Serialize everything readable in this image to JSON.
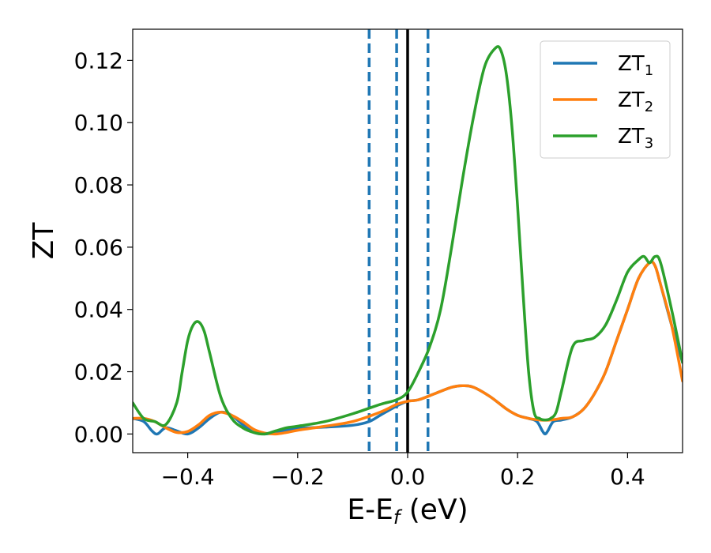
{
  "chart_data": {
    "type": "line",
    "title": "",
    "xlabel": "E-E",
    "xlabel_sub": "f",
    "xlabel_unit": " (eV)",
    "ylabel": "ZT",
    "xlim": [
      -0.5,
      0.5
    ],
    "ylim": [
      -0.006,
      0.13
    ],
    "xticks": [
      -0.4,
      -0.2,
      0.0,
      0.2,
      0.4
    ],
    "xtick_labels": [
      "−0.4",
      "−0.2",
      "0.0",
      "0.2",
      "0.4"
    ],
    "yticks": [
      0.0,
      0.02,
      0.04,
      0.06,
      0.08,
      0.1,
      0.12
    ],
    "ytick_labels": [
      "0.00",
      "0.02",
      "0.04",
      "0.06",
      "0.08",
      "0.10",
      "0.12"
    ],
    "legend_position": "top-right",
    "vlines": [
      {
        "x": -0.07,
        "style": "dashed",
        "color": "#1f77b4"
      },
      {
        "x": -0.02,
        "style": "dashed",
        "color": "#1f77b4"
      },
      {
        "x": 0.037,
        "style": "dashed",
        "color": "#1f77b4"
      },
      {
        "x": 0.0,
        "style": "solid",
        "color": "#000000"
      }
    ],
    "series": [
      {
        "name": "ZT",
        "sub": "1",
        "color": "#1f77b4",
        "x": [
          -0.5,
          -0.48,
          -0.465,
          -0.455,
          -0.44,
          -0.42,
          -0.4,
          -0.38,
          -0.36,
          -0.34,
          -0.32,
          -0.3,
          -0.28,
          -0.26,
          -0.24,
          -0.22,
          -0.2,
          -0.15,
          -0.1,
          -0.07,
          -0.05,
          -0.02,
          0.0,
          0.02,
          0.05,
          0.08,
          0.1,
          0.12,
          0.15,
          0.18,
          0.2,
          0.22,
          0.235,
          0.245,
          0.25,
          0.255,
          0.265,
          0.28,
          0.3,
          0.32,
          0.34,
          0.36,
          0.38,
          0.4,
          0.42,
          0.44,
          0.45,
          0.46,
          0.48,
          0.5
        ],
        "y": [
          0.005,
          0.004,
          0.001,
          0.0,
          0.002,
          0.001,
          0.0,
          0.002,
          0.005,
          0.007,
          0.006,
          0.003,
          0.0005,
          0.0,
          0.0005,
          0.0012,
          0.0018,
          0.0022,
          0.0028,
          0.004,
          0.006,
          0.009,
          0.0105,
          0.011,
          0.013,
          0.015,
          0.0155,
          0.015,
          0.012,
          0.008,
          0.006,
          0.005,
          0.004,
          0.001,
          0.0,
          0.001,
          0.004,
          0.0045,
          0.0055,
          0.008,
          0.013,
          0.02,
          0.03,
          0.04,
          0.05,
          0.055,
          0.054,
          0.048,
          0.035,
          0.023
        ]
      },
      {
        "name": "ZT",
        "sub": "2",
        "color": "#ff7f0e",
        "x": [
          -0.5,
          -0.48,
          -0.46,
          -0.44,
          -0.42,
          -0.4,
          -0.38,
          -0.36,
          -0.34,
          -0.32,
          -0.3,
          -0.28,
          -0.26,
          -0.24,
          -0.22,
          -0.2,
          -0.15,
          -0.1,
          -0.05,
          -0.02,
          0.0,
          0.02,
          0.05,
          0.08,
          0.1,
          0.12,
          0.15,
          0.18,
          0.2,
          0.22,
          0.24,
          0.26,
          0.28,
          0.3,
          0.32,
          0.34,
          0.36,
          0.38,
          0.4,
          0.42,
          0.44,
          0.45,
          0.46,
          0.48,
          0.5
        ],
        "y": [
          0.005,
          0.005,
          0.004,
          0.002,
          0.0005,
          0.0008,
          0.003,
          0.006,
          0.007,
          0.006,
          0.004,
          0.0015,
          0.0003,
          0.0,
          0.0005,
          0.0012,
          0.0025,
          0.004,
          0.007,
          0.0095,
          0.0105,
          0.011,
          0.013,
          0.015,
          0.0155,
          0.015,
          0.012,
          0.008,
          0.006,
          0.005,
          0.0045,
          0.0045,
          0.005,
          0.0055,
          0.008,
          0.013,
          0.02,
          0.03,
          0.04,
          0.05,
          0.055,
          0.054,
          0.048,
          0.035,
          0.017
        ]
      },
      {
        "name": "ZT",
        "sub": "3",
        "color": "#2ca02c",
        "x": [
          -0.5,
          -0.48,
          -0.46,
          -0.44,
          -0.42,
          -0.41,
          -0.4,
          -0.39,
          -0.38,
          -0.37,
          -0.36,
          -0.34,
          -0.32,
          -0.3,
          -0.28,
          -0.26,
          -0.24,
          -0.22,
          -0.2,
          -0.15,
          -0.1,
          -0.05,
          -0.02,
          0.0,
          0.02,
          0.04,
          0.06,
          0.08,
          0.1,
          0.12,
          0.14,
          0.16,
          0.17,
          0.18,
          0.19,
          0.2,
          0.21,
          0.22,
          0.23,
          0.24,
          0.25,
          0.26,
          0.27,
          0.28,
          0.3,
          0.32,
          0.34,
          0.36,
          0.38,
          0.4,
          0.42,
          0.43,
          0.44,
          0.45,
          0.46,
          0.48,
          0.5
        ],
        "y": [
          0.01,
          0.005,
          0.004,
          0.003,
          0.01,
          0.02,
          0.03,
          0.035,
          0.036,
          0.033,
          0.026,
          0.012,
          0.005,
          0.002,
          0.0005,
          0.0,
          0.001,
          0.002,
          0.0025,
          0.004,
          0.0065,
          0.0095,
          0.011,
          0.0135,
          0.02,
          0.028,
          0.04,
          0.06,
          0.082,
          0.102,
          0.118,
          0.124,
          0.123,
          0.115,
          0.098,
          0.073,
          0.045,
          0.02,
          0.007,
          0.005,
          0.0045,
          0.005,
          0.007,
          0.014,
          0.028,
          0.03,
          0.031,
          0.035,
          0.043,
          0.052,
          0.056,
          0.057,
          0.055,
          0.057,
          0.055,
          0.04,
          0.023
        ]
      }
    ]
  }
}
